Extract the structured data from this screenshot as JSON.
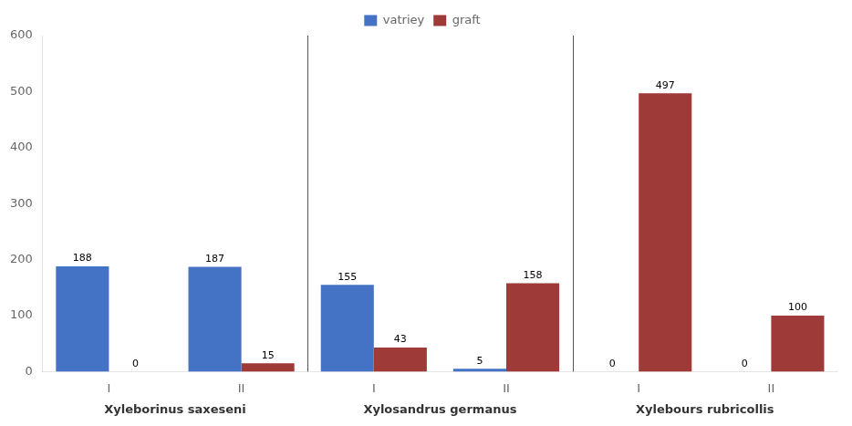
{
  "chart_data": {
    "type": "bar",
    "categories": [
      "I",
      "II",
      "I",
      "II",
      "I",
      "II"
    ],
    "group_labels": [
      "Xyleborinus saxeseni",
      "Xylosandrus germanus",
      "Xylebours rubricollis"
    ],
    "series": [
      {
        "name": "vatriey",
        "color": "#4472C4",
        "values": [
          188,
          187,
          155,
          5,
          0,
          0
        ]
      },
      {
        "name": "graft",
        "color": "#9E3A38",
        "values": [
          0,
          15,
          43,
          158,
          497,
          100
        ]
      }
    ],
    "ylim": [
      0,
      600
    ],
    "yticks": [
      0,
      100,
      200,
      300,
      400,
      500,
      600
    ],
    "grid": false,
    "legend": "top",
    "data_labels": true
  }
}
